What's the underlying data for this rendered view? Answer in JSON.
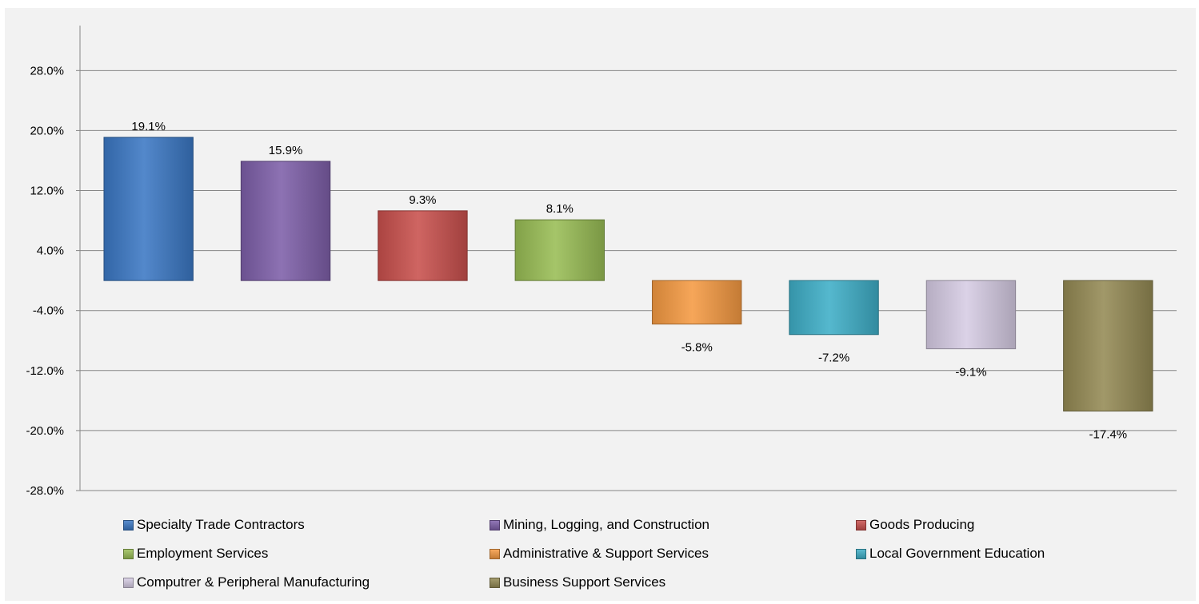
{
  "chart_data": {
    "type": "bar",
    "title": "",
    "xlabel": "",
    "ylabel": "",
    "ylim": [
      -28,
      34
    ],
    "yticks": [
      28,
      20,
      12,
      4,
      -4,
      -12,
      -20,
      -28
    ],
    "ytick_labels": [
      "28.0%",
      "20.0%",
      "12.0%",
      "4.0%",
      "-4.0%",
      "-12.0%",
      "-20.0%",
      "-28.0%"
    ],
    "grid": true,
    "legend_position": "bottom",
    "categories": [
      "Specialty Trade Contractors",
      "Mining, Logging, and Construction",
      "Goods Producing",
      "Employment Services",
      "Administrative & Support Services",
      "Local Government Education",
      "Computrer & Peripheral Manufacturing",
      "Business Support Services"
    ],
    "values": [
      19.1,
      15.9,
      9.3,
      8.1,
      -5.8,
      -7.2,
      -9.1,
      -17.4
    ],
    "data_labels": [
      "19.1%",
      "15.9%",
      "9.3%",
      "8.1%",
      "-5.8%",
      "-7.2%",
      "-9.1%",
      "-17.4%"
    ],
    "colors": [
      "#3b78c4",
      "#7e5fa9",
      "#c9504d",
      "#99bd55",
      "#f59a42",
      "#3eaec7",
      "#d6cce4",
      "#948a54"
    ]
  }
}
